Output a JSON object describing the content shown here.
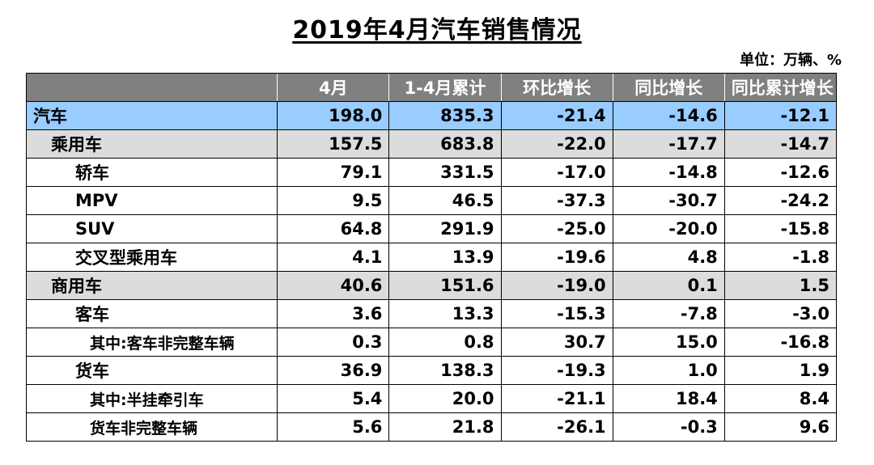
{
  "title": "2019年4月汽车销售情况",
  "unit": "单位：万辆、%",
  "columns": [
    "",
    "4月",
    "1-4月累计",
    "环比增长",
    "同比增长",
    "同比累计增长"
  ],
  "rows": [
    {
      "name": "汽车",
      "level": 0,
      "values": [
        "198.0",
        "835.3",
        "-21.4",
        "-14.6",
        "-12.1"
      ]
    },
    {
      "name": "乘用车",
      "level": 1,
      "values": [
        "157.5",
        "683.8",
        "-22.0",
        "-17.7",
        "-14.7"
      ]
    },
    {
      "name": "轿车",
      "level": 2,
      "values": [
        "79.1",
        "331.5",
        "-17.0",
        "-14.8",
        "-12.6"
      ]
    },
    {
      "name": "MPV",
      "level": 2,
      "values": [
        "9.5",
        "46.5",
        "-37.3",
        "-30.7",
        "-24.2"
      ]
    },
    {
      "name": "SUV",
      "level": 2,
      "values": [
        "64.8",
        "291.9",
        "-25.0",
        "-20.0",
        "-15.8"
      ]
    },
    {
      "name": "交叉型乘用车",
      "level": 2,
      "values": [
        "4.1",
        "13.9",
        "-19.6",
        "4.8",
        "-1.8"
      ]
    },
    {
      "name": "商用车",
      "level": 1,
      "values": [
        "40.6",
        "151.6",
        "-19.0",
        "0.1",
        "1.5"
      ]
    },
    {
      "name": "客车",
      "level": 2,
      "values": [
        "3.6",
        "13.3",
        "-15.3",
        "-7.8",
        "-3.0"
      ]
    },
    {
      "name": "其中:客车非完整车辆",
      "level": 3,
      "values": [
        "0.3",
        "0.8",
        "30.7",
        "15.0",
        "-16.8"
      ]
    },
    {
      "name": "货车",
      "level": 2,
      "values": [
        "36.9",
        "138.3",
        "-19.3",
        "1.0",
        "1.9"
      ]
    },
    {
      "name": "其中:半挂牵引车",
      "level": 3,
      "values": [
        "5.4",
        "20.0",
        "-21.1",
        "18.4",
        "8.4"
      ]
    },
    {
      "name": "货车非完整车辆",
      "level": 3,
      "values": [
        "5.6",
        "21.8",
        "-26.1",
        "-0.3",
        "9.6"
      ]
    }
  ]
}
